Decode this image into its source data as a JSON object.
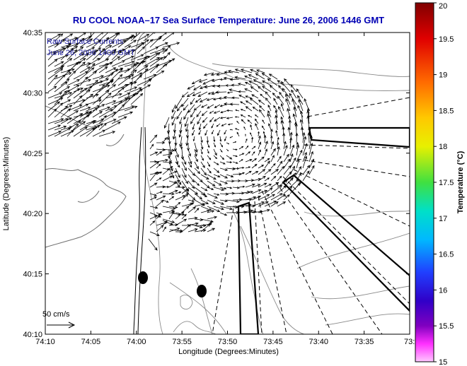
{
  "figure": {
    "title": "RU COOL  NOAA–17  Sea Surface Temperature:  June 26, 2006 1446 GMT",
    "xlabel": "Longitude (Degrees:Minutes)",
    "ylabel": "Latitude (Degrees:Minutes)",
    "legend_line1": "Raw Surface Currents",
    "legend_line2": "June 26, 2006 1400 GMT",
    "scale_label": "50 cm/s",
    "colors": {
      "title": "#0000b4",
      "vectors": "#000000",
      "contours": "#808080",
      "land": "#ffffff"
    }
  },
  "colorbar": {
    "label": "Temperature (°C)",
    "ticks": [
      "20",
      "19.5",
      "19",
      "18.5",
      "18",
      "17.5",
      "17",
      "16.5",
      "16",
      "15.5",
      "15"
    ],
    "range": [
      15,
      20
    ]
  },
  "chart_data": {
    "type": "map",
    "x_axis": {
      "label": "Longitude (Degrees:Minutes)",
      "ticks": [
        "74:10",
        "74:05",
        "74:00",
        "73:55",
        "73:50",
        "73:45",
        "73:40",
        "73:35",
        "73:3"
      ],
      "range_minutes_west": [
        4450,
        4410
      ]
    },
    "y_axis": {
      "label": "Latitude (Degrees:Minutes)",
      "ticks": [
        "40:10",
        "40:15",
        "40:20",
        "40:25",
        "40:30",
        "40:35"
      ],
      "range_minutes_north": [
        2410,
        2435
      ]
    },
    "markers": [
      {
        "name": "buoy",
        "lon": "73:59",
        "lat": "40:14.5"
      },
      {
        "name": "buoy",
        "lon": "73:52.5",
        "lat": "40:13.5"
      }
    ]
  }
}
